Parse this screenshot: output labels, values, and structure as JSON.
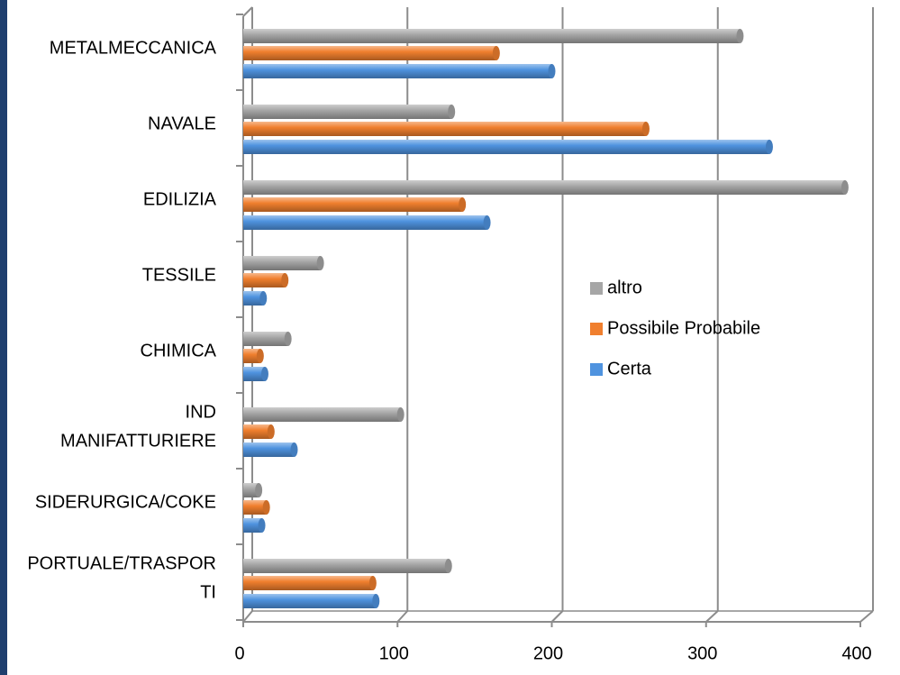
{
  "colors": {
    "edge": "#1f3f6e",
    "grid": "#8c8c8c",
    "axis": "#8c8c8c"
  },
  "chart_data": {
    "type": "bar",
    "orientation": "horizontal",
    "style": "3d-cylinder-bars",
    "categories": [
      [
        "METALMECCANICA"
      ],
      [
        "NAVALE"
      ],
      [
        "EDILIZIA"
      ],
      [
        "TESSILE"
      ],
      [
        "CHIMICA"
      ],
      [
        "IND",
        "MANIFATTURIERE"
      ],
      [
        "SIDERURGICA/COKE"
      ],
      [
        "PORTUALE/TRASPOR",
        "TI"
      ]
    ],
    "series": [
      {
        "name": "altro",
        "color": "#a6a6a6",
        "values": [
          322,
          135,
          390,
          50,
          29,
          102,
          10,
          133
        ]
      },
      {
        "name": "Possibile Probabile",
        "color": "#f07f2e",
        "values": [
          164,
          261,
          142,
          27,
          11,
          18,
          15,
          84
        ]
      },
      {
        "name": "Certa",
        "color": "#4f93df",
        "values": [
          200,
          341,
          158,
          13,
          14,
          33,
          12,
          86
        ]
      }
    ],
    "xlim": [
      0,
      400
    ],
    "xticks": [
      "0",
      "100",
      "200",
      "300",
      "400"
    ],
    "grid": true,
    "legend_position": "center-right",
    "legend_order": [
      "altro",
      "Possibile Probabile",
      "Certa"
    ],
    "title": "",
    "xlabel": "",
    "ylabel": ""
  }
}
